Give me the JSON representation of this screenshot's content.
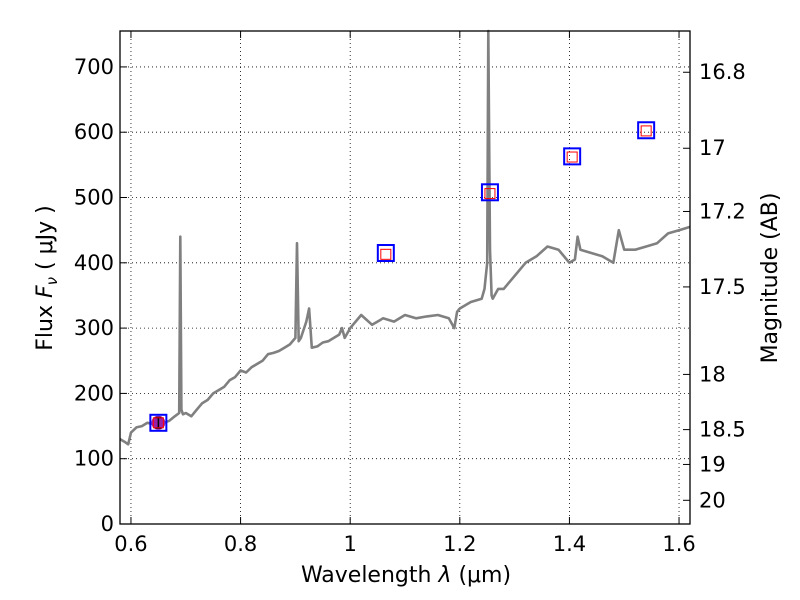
{
  "chart_data": {
    "type": "line",
    "title": "",
    "xlabel_prefix": "Wavelength ",
    "xlabel_symbol": "λ",
    "xlabel_unit": " (μm)",
    "ylabel_prefix": "Flux ",
    "ylabel_symbol": "F",
    "ylabel_subscript": "ν",
    "ylabel_unit": " ( μJy )",
    "y2label": "Magnitude (AB)",
    "xlim": [
      0.58,
      1.62
    ],
    "ylim": [
      0,
      755
    ],
    "x_ticks": [
      0.6,
      0.8,
      1.0,
      1.2,
      1.4,
      1.6
    ],
    "x_tick_labels": [
      "0.6",
      "0.8",
      "1",
      "1.2",
      "1.4",
      "1.6"
    ],
    "y_ticks": [
      0,
      100,
      200,
      300,
      400,
      500,
      600,
      700
    ],
    "y_tick_labels": [
      "0",
      "100",
      "200",
      "300",
      "400",
      "500",
      "600",
      "700"
    ],
    "y2_ticks_mag": [
      16.8,
      17,
      17.2,
      17.5,
      18,
      18.5,
      19,
      20
    ],
    "y2_tick_labels": [
      "16.8",
      "17",
      "17.2",
      "17.5",
      "18",
      "18.5",
      "19",
      "20"
    ],
    "grid": true,
    "colors": {
      "spectrum": "#808080",
      "model": "#0000ff",
      "observed": "#ff0000",
      "photometry": "#9b1fa8"
    },
    "spectrum": {
      "x": [
        0.58,
        0.59,
        0.595,
        0.6,
        0.61,
        0.62,
        0.63,
        0.64,
        0.65,
        0.66,
        0.67,
        0.68,
        0.688,
        0.69,
        0.692,
        0.695,
        0.7,
        0.71,
        0.72,
        0.73,
        0.74,
        0.75,
        0.76,
        0.77,
        0.78,
        0.79,
        0.8,
        0.81,
        0.82,
        0.83,
        0.84,
        0.85,
        0.86,
        0.87,
        0.88,
        0.89,
        0.9,
        0.903,
        0.906,
        0.91,
        0.92,
        0.925,
        0.93,
        0.94,
        0.95,
        0.96,
        0.97,
        0.98,
        0.985,
        0.99,
        1.0,
        1.02,
        1.04,
        1.06,
        1.08,
        1.1,
        1.12,
        1.14,
        1.16,
        1.18,
        1.19,
        1.195,
        1.2,
        1.22,
        1.24,
        1.245,
        1.25,
        1.252,
        1.255,
        1.258,
        1.26,
        1.27,
        1.28,
        1.3,
        1.32,
        1.34,
        1.36,
        1.38,
        1.4,
        1.41,
        1.415,
        1.42,
        1.44,
        1.46,
        1.48,
        1.49,
        1.5,
        1.52,
        1.54,
        1.56,
        1.58,
        1.6,
        1.62
      ],
      "y": [
        130,
        125,
        122,
        140,
        148,
        150,
        155,
        153,
        152,
        155,
        158,
        165,
        170,
        440,
        175,
        168,
        170,
        165,
        175,
        185,
        190,
        200,
        205,
        210,
        220,
        225,
        235,
        232,
        240,
        245,
        250,
        260,
        262,
        265,
        270,
        275,
        285,
        430,
        280,
        285,
        310,
        330,
        270,
        272,
        278,
        280,
        285,
        290,
        300,
        285,
        300,
        320,
        305,
        315,
        310,
        320,
        315,
        318,
        320,
        315,
        300,
        325,
        330,
        340,
        345,
        360,
        400,
        755,
        420,
        350,
        345,
        360,
        360,
        380,
        400,
        410,
        425,
        420,
        400,
        405,
        440,
        420,
        415,
        410,
        400,
        450,
        420,
        420,
        425,
        430,
        445,
        450,
        455
      ]
    },
    "model_points": {
      "x": [
        0.65,
        1.065,
        1.255,
        1.405,
        1.54
      ],
      "y": [
        155,
        415,
        508,
        563,
        603
      ]
    },
    "observed_points": {
      "x": [
        0.65,
        1.065,
        1.255,
        1.405,
        1.54
      ],
      "y": [
        155,
        413,
        506,
        562,
        602
      ]
    },
    "photometry_point": {
      "x": 0.65,
      "y": 155,
      "error": 8
    }
  }
}
